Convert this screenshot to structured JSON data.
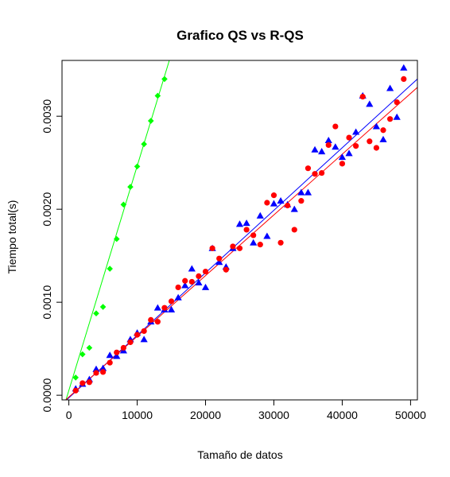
{
  "chart_data": {
    "type": "scatter",
    "title": "Grafico QS vs R-QS",
    "xlabel": "Tamaño de datos",
    "ylabel": "Tiempo total(s)",
    "xlim": [
      -1000,
      51000
    ],
    "ylim": [
      -5e-05,
      0.0036
    ],
    "x_ticks": [
      0,
      10000,
      20000,
      30000,
      40000,
      50000
    ],
    "x_tick_labels": [
      "0",
      "10000",
      "20000",
      "30000",
      "40000",
      "50000"
    ],
    "y_ticks": [
      0.0,
      0.001,
      0.002,
      0.003
    ],
    "y_tick_labels": [
      "0.0000",
      "0.0010",
      "0.0020",
      "0.0030"
    ],
    "grid": false,
    "legend": "none",
    "series": [
      {
        "color": "#00ff00",
        "marker": "diamond",
        "x": [
          1000,
          2000,
          3000,
          4000,
          5000,
          6000,
          7000,
          8000,
          9000,
          10000,
          11000,
          12000,
          13000,
          14000
        ],
        "y": [
          0.00019,
          0.00044,
          0.00051,
          0.00088,
          0.00095,
          0.00136,
          0.00168,
          0.00205,
          0.00224,
          0.00246,
          0.0027,
          0.00295,
          0.00322,
          0.0034
        ],
        "fit": {
          "x": [
            -1000,
            14700
          ],
          "y": [
            -0.00019,
            0.0036
          ]
        }
      },
      {
        "color": "#0000ff",
        "marker": "triangle",
        "x": [
          1000,
          2000,
          3000,
          4000,
          5000,
          6000,
          7000,
          8000,
          9000,
          10000,
          11000,
          12000,
          13000,
          14000,
          15000,
          16000,
          17000,
          18000,
          19000,
          20000,
          21000,
          22000,
          23000,
          24000,
          25000,
          26000,
          27000,
          28000,
          29000,
          30000,
          31000,
          32000,
          33000,
          34000,
          35000,
          36000,
          37000,
          38000,
          39000,
          40000,
          41000,
          42000,
          43000,
          44000,
          45000,
          46000,
          47000,
          48000,
          49000
        ],
        "y": [
          7e-05,
          0.00012,
          0.00017,
          0.00028,
          0.00029,
          0.00043,
          0.00042,
          0.00048,
          0.0006,
          0.00067,
          0.0006,
          0.00079,
          0.00094,
          0.00092,
          0.00092,
          0.00105,
          0.00118,
          0.00136,
          0.00121,
          0.00116,
          0.00158,
          0.00143,
          0.00138,
          0.00158,
          0.00184,
          0.00185,
          0.00164,
          0.00193,
          0.00171,
          0.00206,
          0.00209,
          0.00205,
          0.002,
          0.00218,
          0.00218,
          0.00264,
          0.00262,
          0.00274,
          0.00267,
          0.00256,
          0.0026,
          0.00283,
          0.00322,
          0.00313,
          0.00289,
          0.00275,
          0.0033,
          0.00299,
          0.00352
        ],
        "fit": {
          "x": [
            -1000,
            51000
          ],
          "y": [
            -9.5e-05,
            0.0034
          ]
        }
      },
      {
        "color": "#ff0000",
        "marker": "circle",
        "x": [
          1000,
          2000,
          3000,
          4000,
          5000,
          6000,
          7000,
          8000,
          9000,
          10000,
          11000,
          12000,
          13000,
          14000,
          15000,
          16000,
          17000,
          18000,
          19000,
          20000,
          21000,
          22000,
          23000,
          24000,
          25000,
          26000,
          27000,
          28000,
          29000,
          30000,
          31000,
          32000,
          33000,
          34000,
          35000,
          36000,
          37000,
          38000,
          39000,
          40000,
          41000,
          42000,
          43000,
          44000,
          45000,
          46000,
          47000,
          48000,
          49000
        ],
        "y": [
          5e-05,
          0.00013,
          0.00014,
          0.00024,
          0.00025,
          0.00035,
          0.00046,
          0.00051,
          0.00057,
          0.00065,
          0.00069,
          0.00081,
          0.00079,
          0.00094,
          0.00101,
          0.00116,
          0.00123,
          0.00122,
          0.00128,
          0.00133,
          0.00158,
          0.00147,
          0.00135,
          0.0016,
          0.00158,
          0.00178,
          0.00172,
          0.00162,
          0.00207,
          0.00215,
          0.00164,
          0.00204,
          0.00178,
          0.00209,
          0.00244,
          0.00238,
          0.00239,
          0.00269,
          0.00289,
          0.00249,
          0.00277,
          0.00268,
          0.00321,
          0.00273,
          0.00266,
          0.00285,
          0.00297,
          0.00315,
          0.0034
        ],
        "fit": {
          "x": [
            -1000,
            51000
          ],
          "y": [
            -8.5e-05,
            0.00331
          ]
        }
      }
    ]
  }
}
